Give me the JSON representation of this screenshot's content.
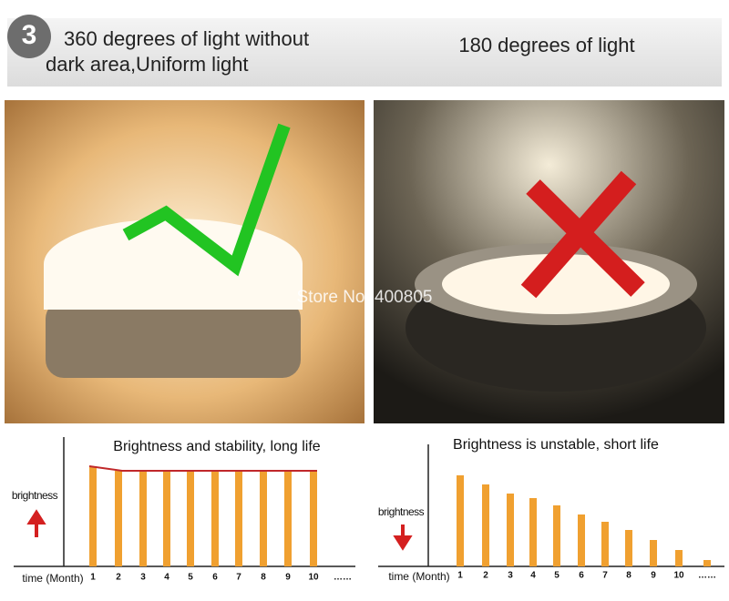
{
  "header": {
    "badge": "3",
    "left_line_1": "360 degrees of light without",
    "left_line_2": "dark area,Uniform light",
    "right": "180 degrees of light"
  },
  "watermark": "Store No: 400805",
  "chart_data": [
    {
      "type": "bar",
      "title": "Brightness and stability, long life",
      "y_label": "brightness",
      "x_label": "time (Month)",
      "categories": [
        "1",
        "2",
        "3",
        "4",
        "5",
        "6",
        "7",
        "8",
        "9",
        "10",
        "……"
      ],
      "values": [
        110,
        105,
        105,
        105,
        105,
        105,
        105,
        105,
        105,
        105,
        null
      ],
      "color": "#f0a030",
      "line_color": "#c0282a",
      "ylim": [
        0,
        130
      ]
    },
    {
      "type": "bar",
      "title": "Brightness is unstable, short life",
      "y_label": "brightness",
      "x_label": "time (Month)",
      "categories": [
        "1",
        "2",
        "3",
        "4",
        "5",
        "6",
        "7",
        "8",
        "9",
        "10",
        "……"
      ],
      "values": [
        100,
        90,
        80,
        75,
        67,
        57,
        49,
        40,
        29,
        18,
        7
      ],
      "color": "#f0a030",
      "ylim": [
        0,
        130
      ]
    }
  ]
}
